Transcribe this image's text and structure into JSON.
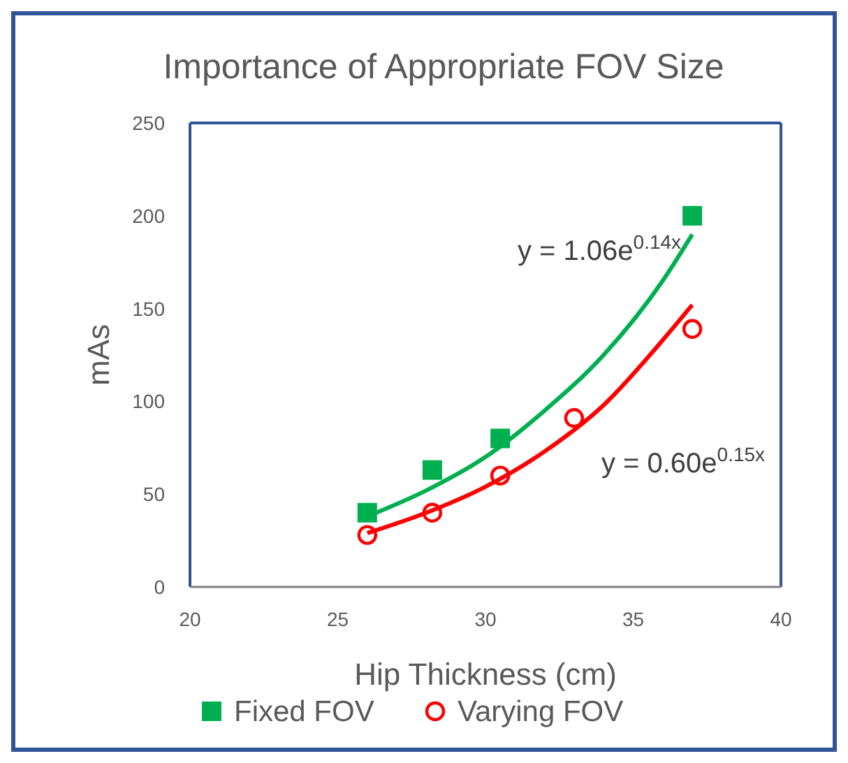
{
  "chart_data": {
    "type": "scatter",
    "title": "Importance of Appropriate FOV Size",
    "xlabel": "Hip Thickness (cm)",
    "ylabel": "mAs",
    "xlim": [
      20,
      40
    ],
    "xticks": [
      20,
      25,
      30,
      35,
      40
    ],
    "ylim": [
      0,
      250
    ],
    "yticks": [
      0,
      50,
      100,
      150,
      200,
      250
    ],
    "legend": "bottom",
    "series": [
      {
        "name": "Fixed FOV",
        "type": "scatter",
        "marker": "square",
        "color": "#00b050",
        "x": [
          26,
          28.2,
          30.5,
          37
        ],
        "values": [
          40,
          63,
          80,
          200
        ]
      },
      {
        "name": "Varying FOV",
        "type": "scatter",
        "marker": "circle",
        "color": "#ff0000",
        "x": [
          26,
          28.2,
          30.5,
          33,
          37
        ],
        "values": [
          28,
          40,
          60,
          91,
          139
        ]
      },
      {
        "type": "line",
        "color": "#00b050",
        "x": [
          26,
          28,
          30,
          32,
          34,
          36,
          37
        ],
        "values": [
          38,
          52,
          70,
          95,
          125,
          165,
          190
        ]
      },
      {
        "type": "line",
        "color": "#ff0000",
        "x": [
          26,
          28,
          30,
          32,
          34,
          36,
          37
        ],
        "values": [
          29,
          40,
          54,
          73,
          98,
          133,
          152
        ]
      }
    ],
    "annotations": [
      "y = 1.06e$^{0.14x}$",
      "y = 0.60e$^{0.15x}$"
    ]
  }
}
